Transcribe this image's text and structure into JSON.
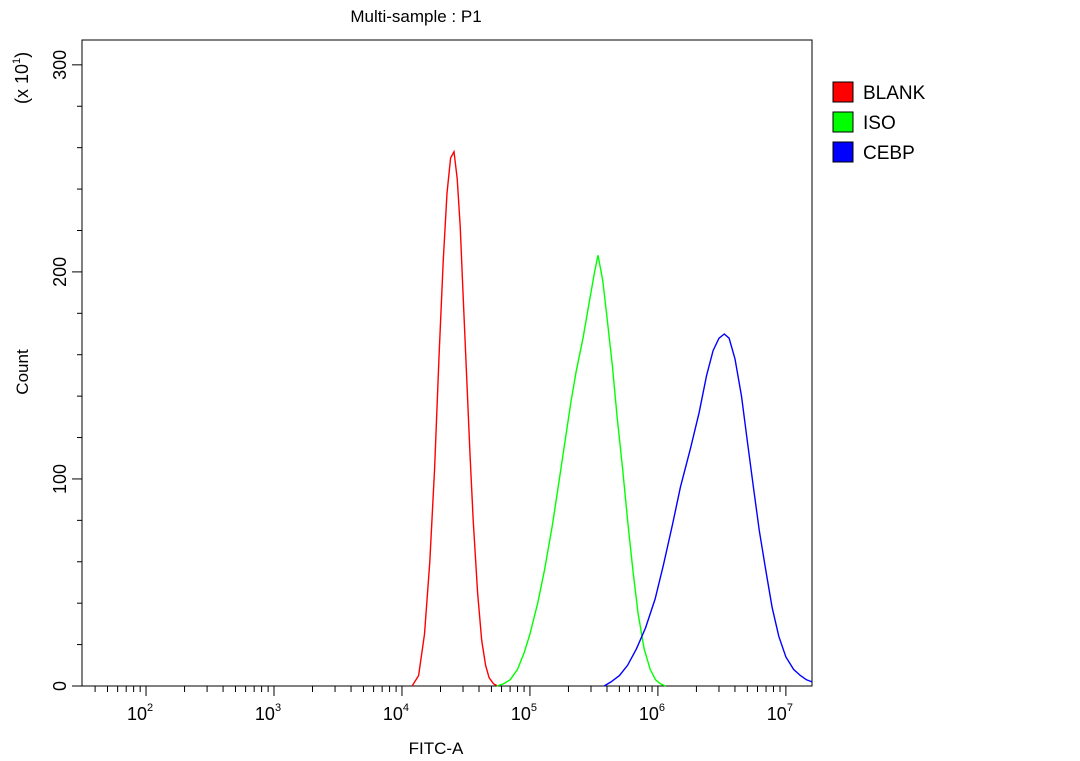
{
  "chart_data": {
    "type": "line",
    "title": "Multi-sample : P1",
    "xlabel": "FITC-A",
    "ylabel": "Count",
    "y_multiplier_label": "(x 10",
    "y_multiplier_exponent": "1",
    "y_multiplier_close": ")",
    "x_scale": "log",
    "xlim": [
      31.6,
      16000000
    ],
    "ylim": [
      0,
      312
    ],
    "x_ticks": [
      {
        "value": 100,
        "base": "10",
        "exponent": "2"
      },
      {
        "value": 1000,
        "base": "10",
        "exponent": "3"
      },
      {
        "value": 10000,
        "base": "10",
        "exponent": "4"
      },
      {
        "value": 100000,
        "base": "10",
        "exponent": "5"
      },
      {
        "value": 1000000,
        "base": "10",
        "exponent": "6"
      },
      {
        "value": 10000000,
        "base": "10",
        "exponent": "7"
      }
    ],
    "y_ticks": [
      {
        "value": 0,
        "label": "0"
      },
      {
        "value": 100,
        "label": "100"
      },
      {
        "value": 200,
        "label": "200"
      },
      {
        "value": 300,
        "label": "300"
      }
    ],
    "grid": false,
    "legend_position": "right",
    "series": [
      {
        "name": "BLANK",
        "color": "#ff0000",
        "x": [
          12000,
          13500,
          15000,
          16500,
          18000,
          19500,
          21000,
          22500,
          24000,
          25500,
          27000,
          28500,
          30000,
          32000,
          34000,
          36000,
          39000,
          42000,
          45000,
          48000,
          52000,
          56000
        ],
        "y": [
          0,
          5,
          25,
          60,
          105,
          160,
          205,
          238,
          255,
          258,
          245,
          222,
          190,
          150,
          112,
          80,
          45,
          22,
          10,
          4,
          1,
          0
        ]
      },
      {
        "name": "ISO",
        "color": "#00ff00",
        "x": [
          55000,
          62000,
          70000,
          80000,
          90000,
          100000,
          115000,
          130000,
          150000,
          170000,
          190000,
          210000,
          230000,
          260000,
          290000,
          320000,
          340000,
          370000,
          400000,
          440000,
          480000,
          530000,
          580000,
          640000,
          700000,
          780000,
          870000,
          960000,
          1050000,
          1150000
        ],
        "y": [
          0,
          1,
          3,
          8,
          16,
          25,
          40,
          56,
          78,
          100,
          120,
          138,
          152,
          168,
          185,
          200,
          208,
          196,
          178,
          155,
          130,
          105,
          80,
          55,
          35,
          18,
          8,
          3,
          1,
          0
        ]
      },
      {
        "name": "CEBP",
        "color": "#0000ff",
        "x": [
          380000,
          430000,
          500000,
          580000,
          680000,
          800000,
          950000,
          1100000,
          1300000,
          1500000,
          1800000,
          2100000,
          2400000,
          2700000,
          3000000,
          3300000,
          3600000,
          4000000,
          4500000,
          5000000,
          5600000,
          6200000,
          7000000,
          7800000,
          8800000,
          10000000,
          11500000,
          13000000,
          14500000,
          16000000
        ],
        "y": [
          0,
          2,
          5,
          10,
          18,
          28,
          42,
          58,
          78,
          96,
          115,
          132,
          150,
          162,
          168,
          170,
          168,
          158,
          140,
          118,
          95,
          75,
          55,
          38,
          24,
          14,
          8,
          5,
          3,
          2
        ]
      }
    ]
  }
}
